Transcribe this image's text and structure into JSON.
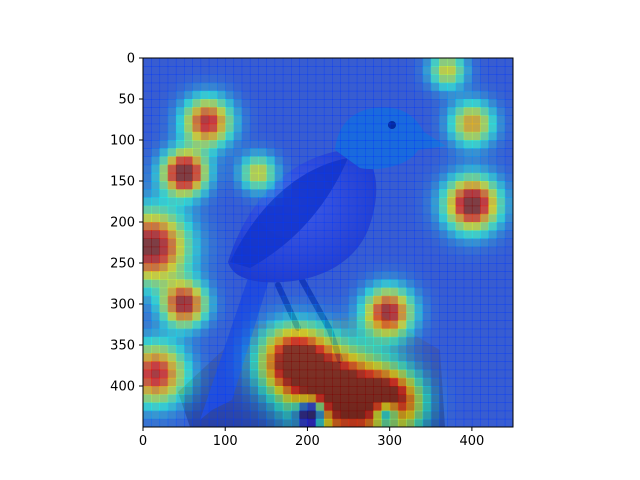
{
  "figure": {
    "background": "#ffffff",
    "image_subject": "scrub jay perched on a weathered wooden post",
    "overlay_colormap": "jet",
    "overlay_alpha": 0.55
  },
  "chart_data": {
    "type": "heatmap",
    "title": "",
    "xlabel": "",
    "ylabel": "",
    "xlim": [
      0,
      450
    ],
    "ylim": [
      450,
      0
    ],
    "x_ticks": [
      0,
      100,
      200,
      300,
      400
    ],
    "y_ticks": [
      0,
      50,
      100,
      150,
      200,
      250,
      300,
      350,
      400
    ],
    "x_tick_labels": [
      "0",
      "100",
      "200",
      "300",
      "400"
    ],
    "y_tick_labels": [
      "0",
      "50",
      "100",
      "150",
      "200",
      "250",
      "300",
      "350",
      "400"
    ],
    "grid": false,
    "legend": "none",
    "hotspots": [
      {
        "x": 50,
        "y": 140,
        "intensity": 0.95,
        "spread": 18
      },
      {
        "x": 78,
        "y": 78,
        "intensity": 0.75,
        "spread": 20
      },
      {
        "x": 10,
        "y": 230,
        "intensity": 0.85,
        "spread": 30
      },
      {
        "x": 50,
        "y": 300,
        "intensity": 0.8,
        "spread": 18
      },
      {
        "x": 15,
        "y": 385,
        "intensity": 0.75,
        "spread": 25
      },
      {
        "x": 400,
        "y": 178,
        "intensity": 0.9,
        "spread": 22
      },
      {
        "x": 400,
        "y": 80,
        "intensity": 0.55,
        "spread": 18
      },
      {
        "x": 298,
        "y": 310,
        "intensity": 0.8,
        "spread": 20
      },
      {
        "x": 185,
        "y": 370,
        "intensity": 0.95,
        "spread": 28
      },
      {
        "x": 240,
        "y": 410,
        "intensity": 1.0,
        "spread": 35
      },
      {
        "x": 300,
        "y": 420,
        "intensity": 0.9,
        "spread": 25
      },
      {
        "x": 140,
        "y": 140,
        "intensity": 0.45,
        "spread": 15
      },
      {
        "x": 370,
        "y": 15,
        "intensity": 0.45,
        "spread": 15
      }
    ],
    "cool_spots": [
      {
        "x": 205,
        "y": 432,
        "spread": 12
      },
      {
        "x": 295,
        "y": 432,
        "spread": 12
      }
    ]
  }
}
